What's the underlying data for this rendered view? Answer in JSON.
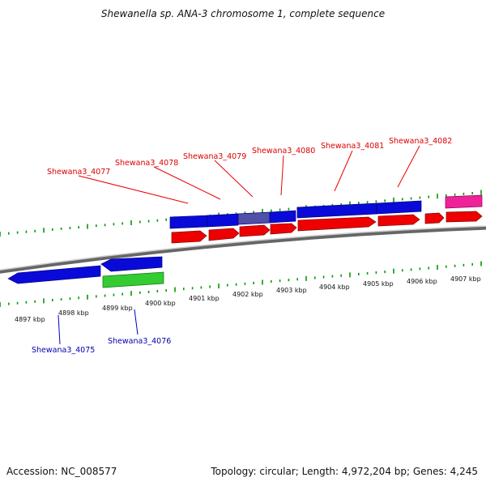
{
  "title": "Shewanella sp. ANA-3 chromosome 1, complete sequence",
  "footer": {
    "accession": "Accession: NC_008577",
    "summary": "Topology: circular; Length: 4,972,204 bp; Genes: 4,245"
  },
  "colors": {
    "forward_cds": "#ff0000",
    "reverse_cds": "#0000ff",
    "rna": "#33cc33",
    "other": "#ff33aa",
    "backbone": "#888888",
    "ticks": "#009900",
    "forward_label": "#cc0000",
    "reverse_label": "#0000aa"
  },
  "scale_labels": [
    {
      "kbp": 4897,
      "label": "4897 kbp"
    },
    {
      "kbp": 4898,
      "label": "4898 kbp"
    },
    {
      "kbp": 4899,
      "label": "4899 kbp"
    },
    {
      "kbp": 4900,
      "label": "4900 kbp"
    },
    {
      "kbp": 4901,
      "label": "4901 kbp"
    },
    {
      "kbp": 4902,
      "label": "4902 kbp"
    },
    {
      "kbp": 4903,
      "label": "4903 kbp"
    },
    {
      "kbp": 4904,
      "label": "4904 kbp"
    },
    {
      "kbp": 4905,
      "label": "4905 kbp"
    },
    {
      "kbp": 4906,
      "label": "4906 kbp"
    },
    {
      "kbp": 4907,
      "label": "4907 kbp"
    }
  ],
  "gene_labels": {
    "forward": [
      "Shewana3_4077",
      "Shewana3_4078",
      "Shewana3_4079",
      "Shewana3_4080",
      "Shewana3_4081",
      "Shewana3_4082"
    ],
    "reverse": [
      "Shewana3_4075",
      "Shewana3_4076"
    ]
  }
}
